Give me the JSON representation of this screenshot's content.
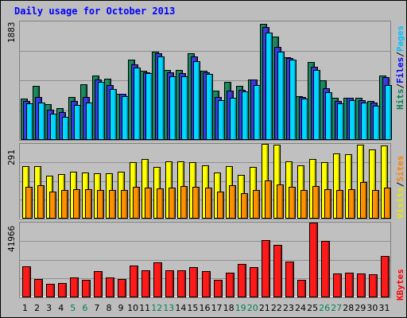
{
  "title": "Daily usage for October 2013",
  "chart_data": [
    {
      "type": "bar",
      "panel": "pages-files-hits",
      "categories": [
        "1",
        "2",
        "3",
        "4",
        "5",
        "6",
        "7",
        "8",
        "9",
        "10",
        "11",
        "12",
        "13",
        "14",
        "15",
        "16",
        "17",
        "18",
        "19",
        "20",
        "21",
        "22",
        "23",
        "24",
        "25",
        "26",
        "27",
        "28",
        "29",
        "30",
        "31"
      ],
      "weekend_days": [
        "5",
        "6",
        "12",
        "13",
        "19",
        "20",
        "26",
        "27"
      ],
      "y_max_label": "1883",
      "ylim": [
        0,
        1883
      ],
      "legend": [
        {
          "label": "Hits",
          "color": "#00805a"
        },
        {
          "label": "/",
          "color": "#000000"
        },
        {
          "label": "Files",
          "color": "#0000ff"
        },
        {
          "label": "/",
          "color": "#000000"
        },
        {
          "label": "Pages",
          "color": "#00c0ff"
        }
      ],
      "series": [
        {
          "name": "Hits",
          "color": "#1a8a5f",
          "values": [
            650,
            850,
            560,
            490,
            680,
            880,
            1020,
            970,
            730,
            1270,
            1090,
            1400,
            1110,
            1110,
            1380,
            1100,
            780,
            920,
            850,
            960,
            1850,
            1640,
            1310,
            690,
            1240,
            940,
            660,
            660,
            660,
            610,
            1020
          ]
        },
        {
          "name": "Files",
          "color": "#3a3ae6",
          "values": [
            610,
            670,
            470,
            430,
            610,
            670,
            950,
            860,
            720,
            1200,
            1070,
            1380,
            1070,
            1060,
            1320,
            1070,
            680,
            770,
            790,
            950,
            1790,
            1480,
            1300,
            670,
            1160,
            810,
            610,
            660,
            620,
            580,
            990
          ]
        },
        {
          "name": "Pages",
          "color": "#00d8ff",
          "values": [
            570,
            590,
            410,
            360,
            550,
            590,
            920,
            800,
            690,
            1150,
            1050,
            1320,
            1010,
            1000,
            1250,
            1040,
            620,
            660,
            760,
            870,
            1700,
            1400,
            1270,
            650,
            1110,
            750,
            570,
            620,
            590,
            540,
            870
          ]
        }
      ]
    },
    {
      "type": "bar",
      "panel": "visits-sites",
      "categories": [
        "1",
        "2",
        "3",
        "4",
        "5",
        "6",
        "7",
        "8",
        "9",
        "10",
        "11",
        "12",
        "13",
        "14",
        "15",
        "16",
        "17",
        "18",
        "19",
        "20",
        "21",
        "22",
        "23",
        "24",
        "25",
        "26",
        "27",
        "28",
        "29",
        "30",
        "31"
      ],
      "y_max_label": "291",
      "ylim": [
        0,
        291
      ],
      "legend": [
        {
          "label": "Visits",
          "color": "#e8e800"
        },
        {
          "label": "/",
          "color": "#000000"
        },
        {
          "label": "Sites",
          "color": "#ff8000"
        }
      ],
      "series": [
        {
          "name": "Visits",
          "color": "#ffff00",
          "values": [
            204,
            203,
            167,
            173,
            181,
            179,
            176,
            176,
            180,
            220,
            231,
            200,
            221,
            221,
            218,
            206,
            179,
            204,
            169,
            199,
            293,
            289,
            222,
            205,
            230,
            219,
            253,
            249,
            288,
            269,
            285
          ]
        },
        {
          "name": "Sites",
          "color": "#ff9000",
          "values": [
            123,
            128,
            104,
            110,
            112,
            113,
            110,
            111,
            111,
            123,
            120,
            117,
            119,
            124,
            122,
            118,
            104,
            127,
            98,
            110,
            148,
            130,
            122,
            111,
            126,
            114,
            111,
            113,
            141,
            108,
            120
          ]
        }
      ]
    },
    {
      "type": "bar",
      "panel": "kbytes",
      "categories": [
        "1",
        "2",
        "3",
        "4",
        "5",
        "6",
        "7",
        "8",
        "9",
        "10",
        "11",
        "12",
        "13",
        "14",
        "15",
        "16",
        "17",
        "18",
        "19",
        "20",
        "21",
        "22",
        "23",
        "24",
        "25",
        "26",
        "27",
        "28",
        "29",
        "30",
        "31"
      ],
      "y_max_label": "41966",
      "ylim": [
        0,
        41966
      ],
      "legend": [
        {
          "label": "KBytes",
          "color": "#ff0000"
        }
      ],
      "series": [
        {
          "name": "KBytes",
          "color": "#ff1a1a",
          "values": [
            17000,
            10000,
            7000,
            7500,
            11000,
            9600,
            14500,
            11000,
            10000,
            17600,
            15000,
            19300,
            14900,
            14900,
            16500,
            14600,
            9600,
            13700,
            18700,
            16900,
            31900,
            29500,
            20000,
            9700,
            41900,
            31500,
            13200,
            13700,
            13200,
            12500,
            23100
          ]
        }
      ]
    }
  ]
}
